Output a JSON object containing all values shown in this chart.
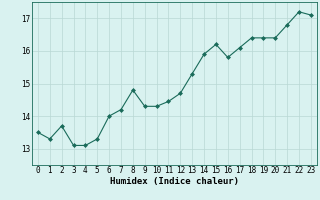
{
  "x": [
    0,
    1,
    2,
    3,
    4,
    5,
    6,
    7,
    8,
    9,
    10,
    11,
    12,
    13,
    14,
    15,
    16,
    17,
    18,
    19,
    20,
    21,
    22,
    23
  ],
  "y": [
    13.5,
    13.3,
    13.7,
    13.1,
    13.1,
    13.3,
    14.0,
    14.2,
    14.8,
    14.3,
    14.3,
    14.45,
    14.7,
    15.3,
    15.9,
    16.2,
    15.8,
    16.1,
    16.4,
    16.4,
    16.4,
    16.8,
    17.2,
    17.1
  ],
  "line_color": "#1a6b5a",
  "marker": "D",
  "marker_size": 2.0,
  "bg_color": "#d9f2f0",
  "grid_color": "#b8d8d4",
  "xlabel": "Humidex (Indice chaleur)",
  "ylim": [
    12.5,
    17.5
  ],
  "xlim": [
    -0.5,
    23.5
  ],
  "yticks": [
    13,
    14,
    15,
    16,
    17
  ],
  "xtick_labels": [
    "0",
    "1",
    "2",
    "3",
    "4",
    "5",
    "6",
    "7",
    "8",
    "9",
    "10",
    "11",
    "12",
    "13",
    "14",
    "15",
    "16",
    "17",
    "18",
    "19",
    "20",
    "21",
    "22",
    "23"
  ],
  "label_fontsize": 6.5,
  "tick_fontsize": 5.5
}
